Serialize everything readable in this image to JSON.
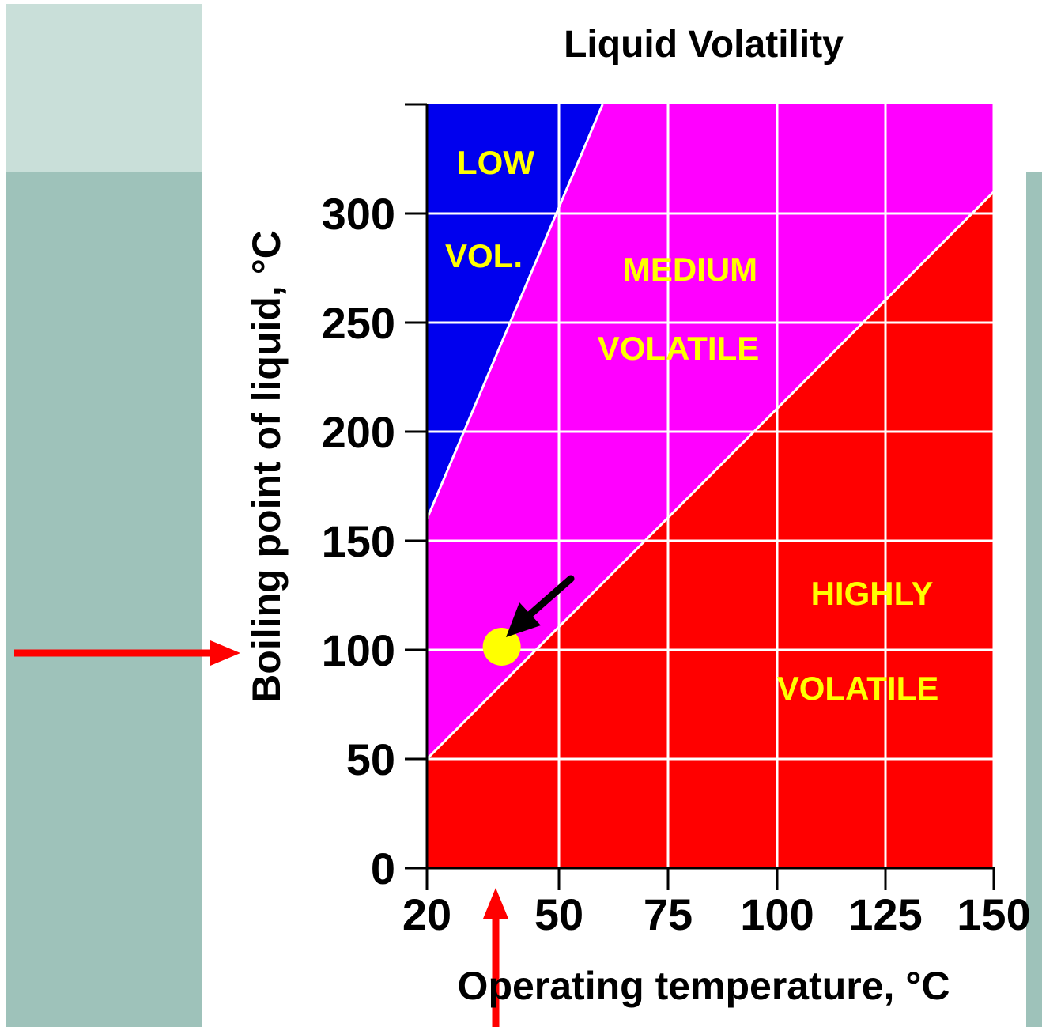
{
  "page": {
    "left_arrow_color": "#ff0000",
    "bottom_arrow_color": "#ff0000"
  },
  "chart_data": {
    "type": "area",
    "title": "Liquid Volatility",
    "xlabel": "Operating temperature, °C",
    "ylabel": "Boiling point of liquid, °C",
    "x_ticks": [
      20,
      50,
      75,
      100,
      125,
      150
    ],
    "y_ticks": [
      0,
      50,
      100,
      150,
      200,
      250,
      300
    ],
    "xlim": [
      20,
      150
    ],
    "ylim": [
      0,
      350
    ],
    "grid": true,
    "regions": [
      {
        "name": "LOW VOL.",
        "label_lines": [
          "LOW",
          "VOL."
        ],
        "color": "#0000ee",
        "boundary": "above line 1"
      },
      {
        "name": "MEDIUM VOLATILE",
        "label_lines": [
          "MEDIUM",
          "VOLATILE"
        ],
        "color": "#ff00ff",
        "boundary": "between lines"
      },
      {
        "name": "HIGHLY VOLATILE",
        "label_lines": [
          "HIGHLY",
          "VOLATILE"
        ],
        "color": "#ff0000",
        "boundary": "below line 2"
      }
    ],
    "boundary_lines": [
      {
        "from": [
          20,
          160
        ],
        "to": [
          60,
          350
        ]
      },
      {
        "from": [
          20,
          50
        ],
        "to": [
          150,
          310
        ]
      }
    ],
    "highlight_point": {
      "x": 37,
      "y": 100,
      "color": "#ffff00"
    }
  }
}
